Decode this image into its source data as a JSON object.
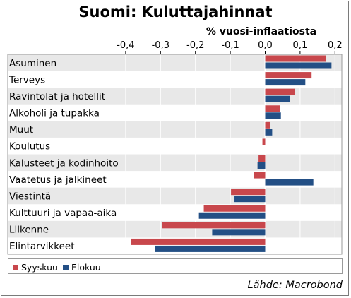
{
  "chart_data": {
    "type": "bar",
    "orientation": "horizontal",
    "title": "Suomi: Kuluttajahinnat",
    "xlabel": "% vuosi-inflaatiosta",
    "xlim": [
      -0.42,
      0.22
    ],
    "xticks": [
      -0.4,
      -0.3,
      -0.2,
      -0.1,
      0.0,
      0.1,
      0.2
    ],
    "xtick_labels": [
      "-0,4",
      "-0,3",
      "-0,2",
      "-0,1",
      "0,0",
      "0,1",
      "0,2"
    ],
    "grid": true,
    "legend_position": "bottom",
    "categories": [
      "Asuminen",
      "Terveys",
      "Ravintolat ja hotellit",
      "Alkoholi ja tupakka",
      "Muut",
      "Koulutus",
      "Kalusteet ja kodinhoito",
      "Vaatetus ja jalkineet",
      "Viestintä",
      "Kulttuuri ja vapaa-aika",
      "Liikenne",
      "Elintarvikkeet"
    ],
    "series": [
      {
        "name": "Syyskuu",
        "color": "#c8474c",
        "values": [
          0.175,
          0.133,
          0.085,
          0.043,
          0.015,
          -0.008,
          -0.019,
          -0.032,
          -0.098,
          -0.176,
          -0.295,
          -0.385
        ]
      },
      {
        "name": "Elokuu",
        "color": "#234f85",
        "values": [
          0.19,
          0.115,
          0.07,
          0.045,
          0.02,
          0.0,
          -0.022,
          0.138,
          -0.088,
          -0.19,
          -0.152,
          -0.315
        ]
      }
    ]
  },
  "source": "Lähde: Macrobond"
}
